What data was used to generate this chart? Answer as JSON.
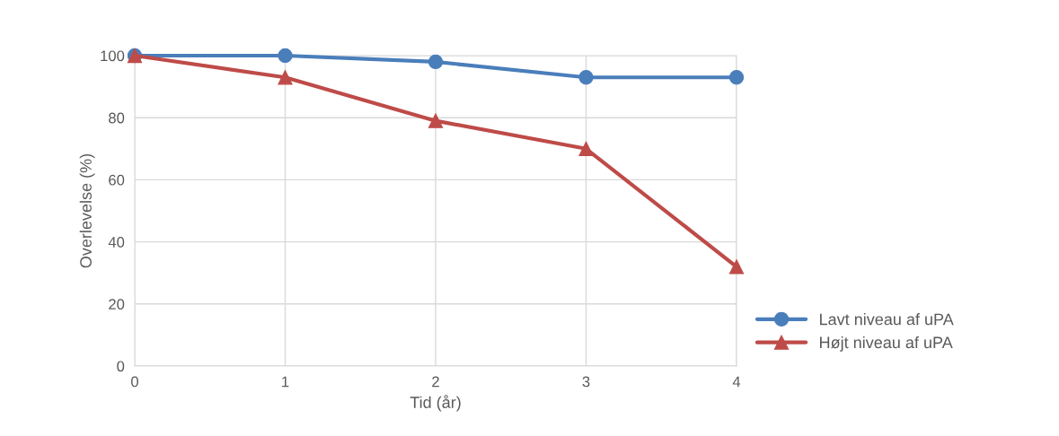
{
  "chart_data": {
    "type": "line",
    "xlabel": "Tid (år)",
    "ylabel": "Overlevelse (%)",
    "x": [
      0,
      1,
      2,
      3,
      4
    ],
    "series": [
      {
        "name": "Lavt niveau af uPA",
        "color": "#4a7ebb",
        "values": [
          100,
          100,
          98,
          93,
          93
        ],
        "marker": "circle"
      },
      {
        "name": "Højt niveau af uPA",
        "color": "#be4b48",
        "values": [
          100,
          93,
          79,
          70,
          32
        ],
        "marker": "triangle"
      }
    ],
    "xlim": [
      0,
      4
    ],
    "xticks": [
      0,
      1,
      2,
      3,
      4
    ],
    "ylim": [
      0,
      100
    ],
    "yticks": [
      0,
      20,
      40,
      60,
      80,
      100
    ],
    "grid": true,
    "legend": "right",
    "line_style": "solid"
  }
}
